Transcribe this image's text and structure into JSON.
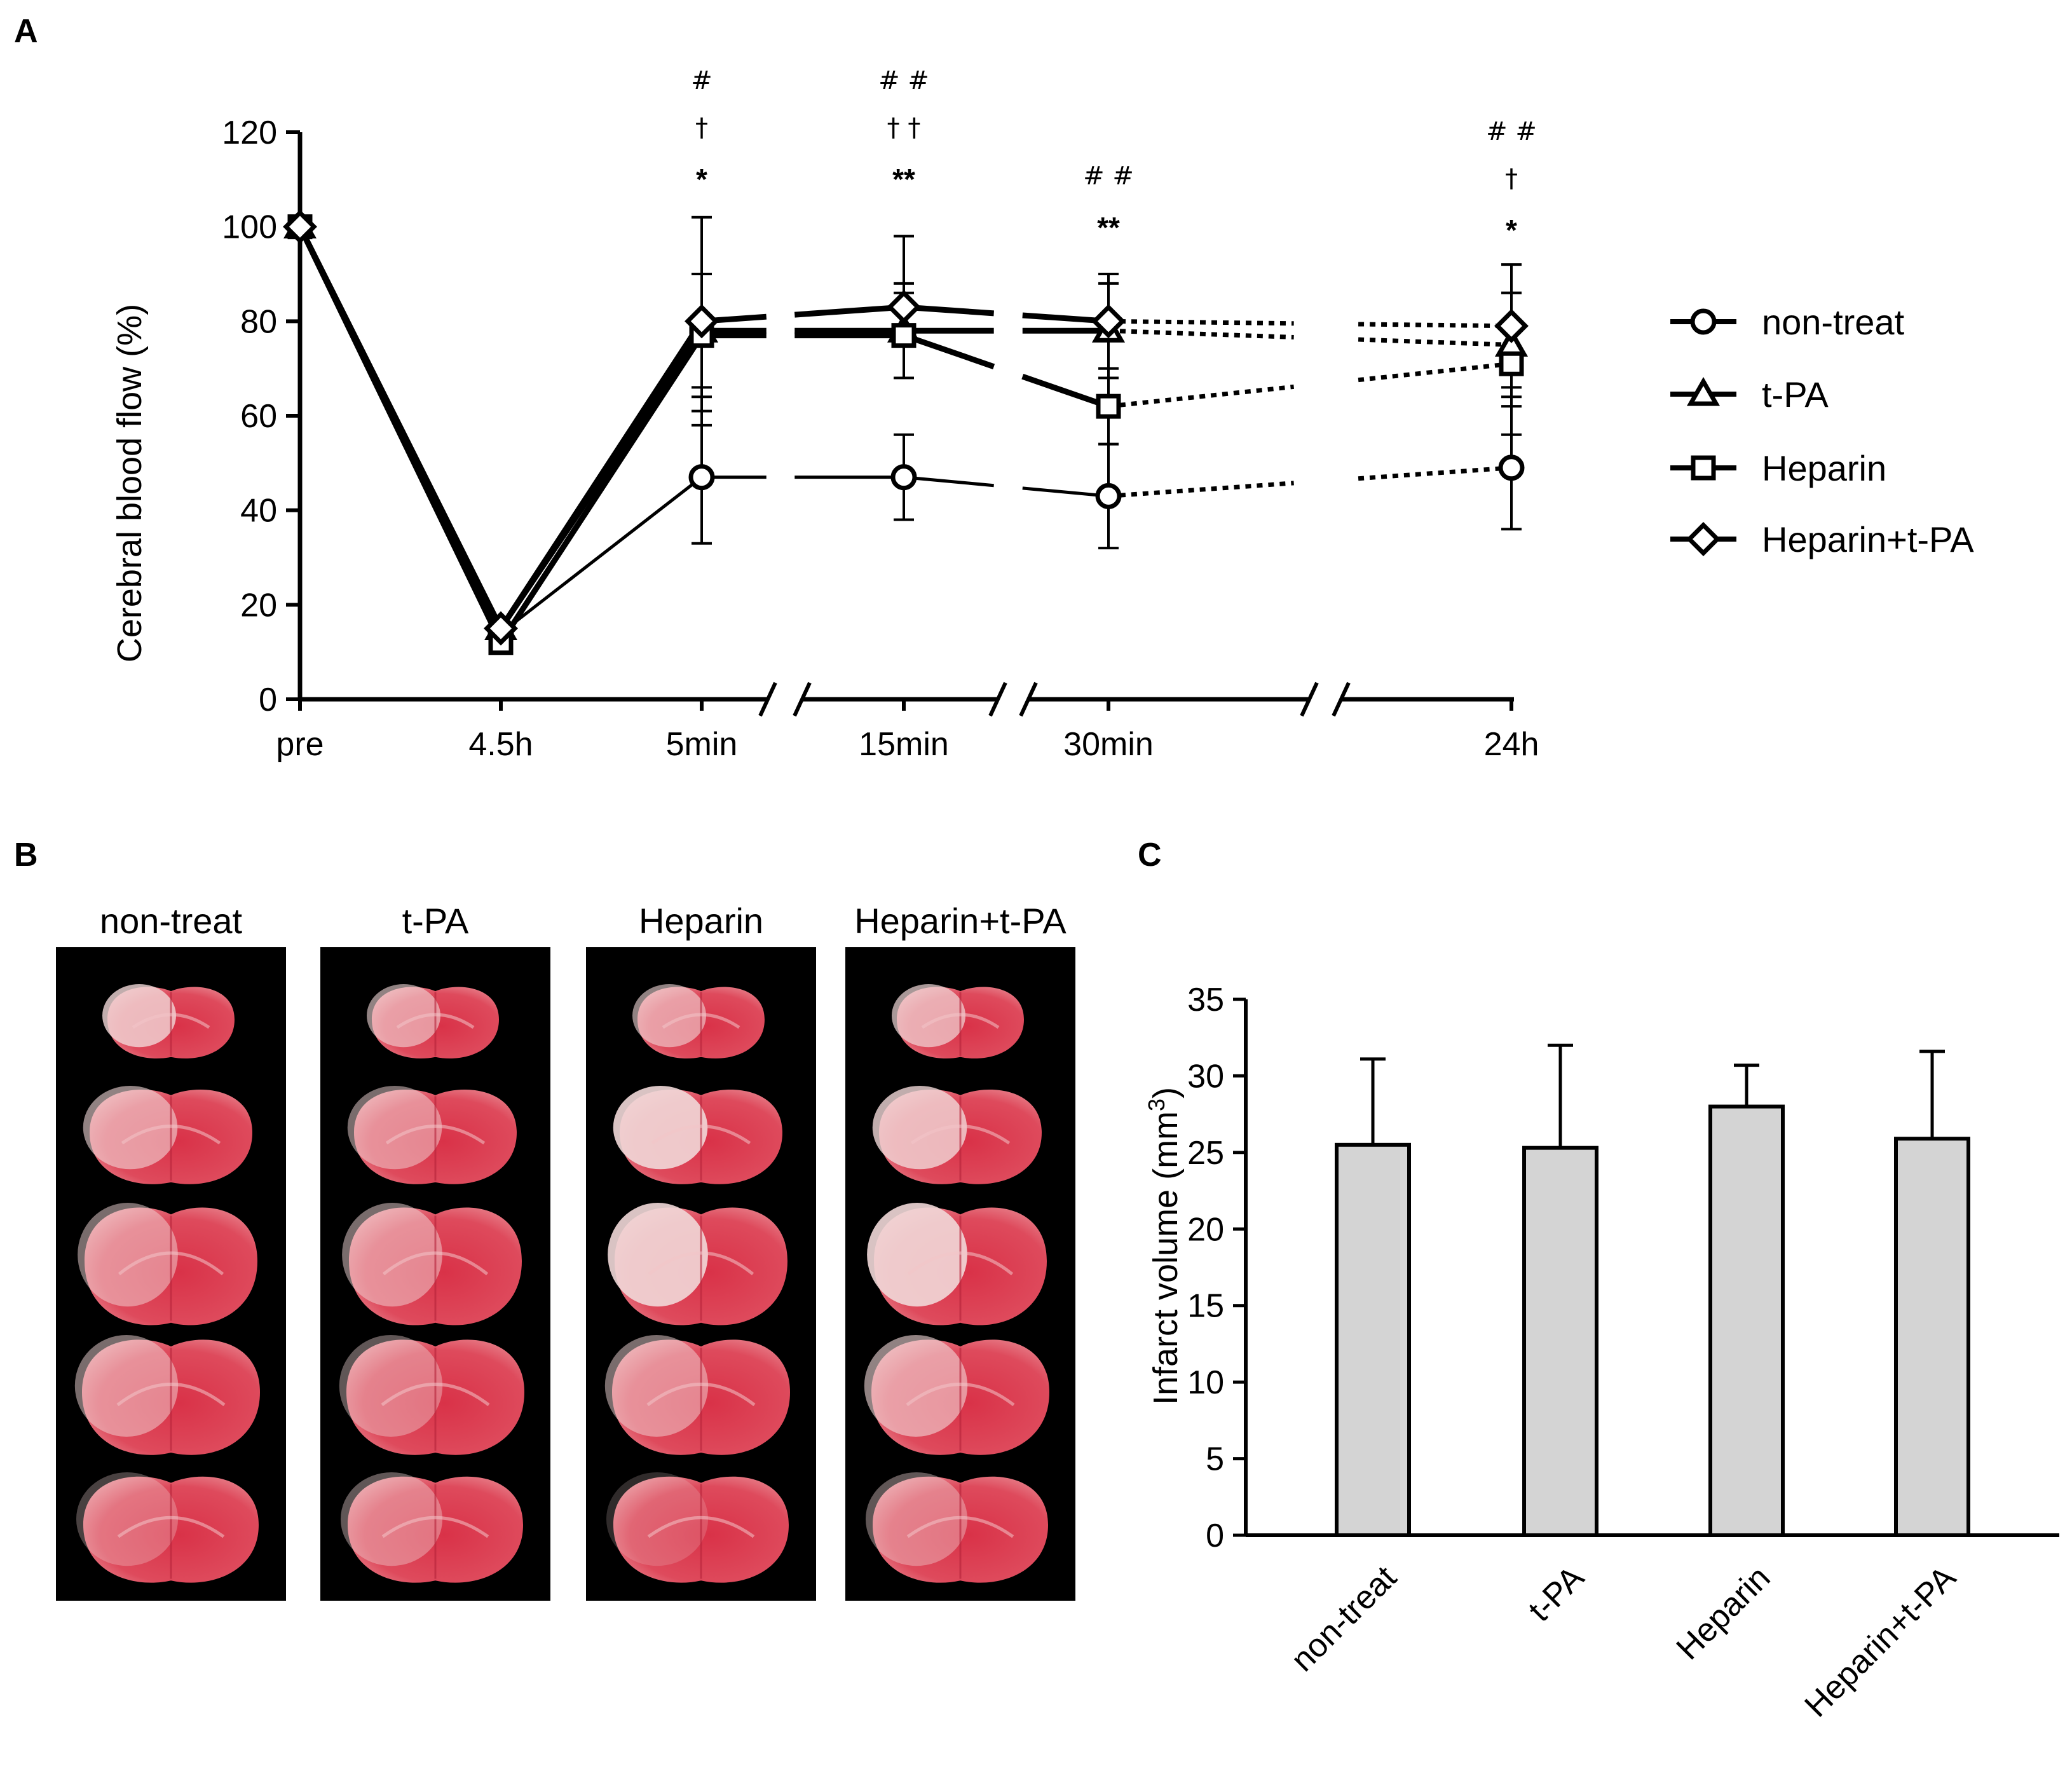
{
  "panels": {
    "a": "A",
    "b": "B",
    "c": "C"
  },
  "colors": {
    "bar_fill": "#d4d4d4",
    "line": "#000000",
    "marker_fill": "#ffffff",
    "photo_bg": "#000000",
    "tissue_red": "#d93a4c",
    "tissue_pale": "#f1d8d8"
  },
  "chart_data": [
    {
      "panel": "A",
      "type": "line",
      "ylabel": "Cerebral blood flow (%)",
      "ylim": [
        0,
        120
      ],
      "yticks": [
        0,
        20,
        40,
        60,
        80,
        100,
        120
      ],
      "categories": [
        "pre",
        "4.5h",
        "5min",
        "15min",
        "30min",
        "24h"
      ],
      "axis_breaks": [
        "5min-15min",
        "15min-30min",
        "30min-24h"
      ],
      "grid": false,
      "legend_position": "right",
      "series": [
        {
          "name": "non-treat",
          "marker": "circle",
          "values": [
            100,
            14,
            47,
            47,
            43,
            49
          ],
          "error": [
            0,
            0,
            14,
            9,
            11,
            13
          ]
        },
        {
          "name": "t-PA",
          "marker": "triangle",
          "values": [
            100,
            15,
            78,
            78,
            78,
            75
          ],
          "error": [
            0,
            0,
            12,
            10,
            10,
            11
          ]
        },
        {
          "name": "Heparin",
          "marker": "square",
          "values": [
            100,
            12,
            77,
            77,
            62,
            71
          ],
          "error": [
            0,
            0,
            13,
            9,
            8,
            15
          ]
        },
        {
          "name": "Heparin+t-PA",
          "marker": "diamond",
          "values": [
            100,
            15,
            80,
            83,
            80,
            79
          ],
          "error": [
            0,
            0,
            22,
            15,
            10,
            13
          ]
        }
      ],
      "annotations": [
        {
          "category": "5min",
          "lines": [
            "#",
            "†",
            "*"
          ]
        },
        {
          "category": "15min",
          "lines": [
            "# #",
            "† †",
            "**"
          ]
        },
        {
          "category": "30min",
          "lines": [
            "# #",
            "**"
          ]
        },
        {
          "category": "24h",
          "lines": [
            "# #",
            "†",
            "*"
          ]
        }
      ]
    },
    {
      "panel": "C",
      "type": "bar",
      "ylabel": "Infarct volume  (mm",
      "ylabel_sup": "3",
      "ylabel_close": ")",
      "ylim": [
        0,
        35
      ],
      "yticks": [
        0,
        5,
        10,
        15,
        20,
        25,
        30,
        35
      ],
      "categories": [
        "non-treat",
        "t-PA",
        "Heparin",
        "Heparin+t-PA"
      ],
      "values": [
        25.5,
        25.3,
        28.0,
        25.9
      ],
      "error": [
        5.6,
        6.7,
        2.7,
        5.7
      ],
      "grid": false
    }
  ],
  "photos": {
    "columns": [
      "non-treat",
      "t-PA",
      "Heparin",
      "Heparin+t-PA"
    ]
  }
}
